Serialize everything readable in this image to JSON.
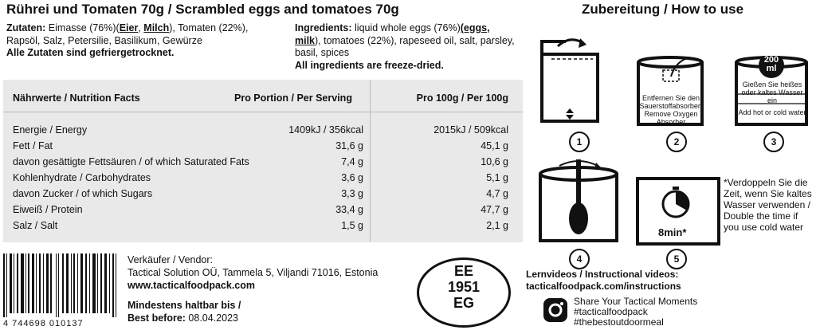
{
  "title": "Rührei und Tomaten 70g / Scrambled eggs and tomatoes 70g",
  "ingredients_de": {
    "label": "Zutaten:",
    "text1": " Eimasse (76%)(",
    "allergen1": "Eier",
    "comma": ", ",
    "allergen2": "Milch",
    "text2": "), Tomaten (22%), Rapsöl, Salz, Petersilie, Basilikum, Gewürze",
    "note": "Alle Zutaten sind gefriergetrocknet."
  },
  "ingredients_en": {
    "label": "Ingredients:",
    "text1": " liquid whole eggs (76%)",
    "allergen1": "(eggs,",
    "allergen2": "milk",
    "text2": "), tomatoes (22%), rapeseed oil, salt, parsley, basil, spices",
    "note": "All ingredients are freeze-dried."
  },
  "nutrition": {
    "header": [
      "Nährwerte / Nutrition Facts",
      "Pro Portion / Per Serving",
      "Pro 100g / Per 100g"
    ],
    "rows": [
      [
        "Energie / Energy",
        "1409kJ / 356kcal",
        "2015kJ / 509kcal"
      ],
      [
        "Fett / Fat",
        "31,6 g",
        "45,1 g"
      ],
      [
        "davon gesättigte Fettsäuren / of which Saturated Fats",
        "7,4 g",
        "10,6 g"
      ],
      [
        "Kohlenhydrate / Carbohydrates",
        "3,6 g",
        "5,1 g"
      ],
      [
        "davon Zucker / of which Sugars",
        "3,3 g",
        "4,7 g"
      ],
      [
        "Eiweiß / Protein",
        "33,4 g",
        "47,7 g"
      ],
      [
        "Salz / Salt",
        "1,5 g",
        "2,1 g"
      ]
    ]
  },
  "howto": {
    "title": "Zubereitung / How to use",
    "step2_caption": "Entfernen Sie den Sauerstoffabsorber/ Remove Oxygen Absorber",
    "step3_volume": "200",
    "step3_unit": "ml",
    "step3_de": "Gießen Sie heißes oder kaltes Wasser ein",
    "step3_en": "Add hot or cold water",
    "step5_time": "8min*",
    "numbers": [
      "1",
      "2",
      "3",
      "4",
      "5"
    ],
    "note": "*Verdoppeln Sie die Zeit, wenn Sie kaltes Wasser verwenden / Double the time if you use cold water"
  },
  "vendor": {
    "label": "Verkäufer / Vendor:",
    "address": "Tactical Solution OÜ, Tammela 5, Viljandi 71016, Estonia",
    "website": "www.tacticalfoodpack.com"
  },
  "best_before": {
    "label_de": "Mindestens haltbar bis /",
    "label_en": "Best before:",
    "date": "08.04.2023"
  },
  "stamp": {
    "line1": "EE",
    "line2": "1951",
    "line3": "EG"
  },
  "learn": {
    "label": "Lernvideos / Instructional videos:",
    "url": "tacticalfoodpack.com/instructions"
  },
  "share": {
    "line1": "Share Your Tactical Moments",
    "line2": "#tacticalfoodpack",
    "line3": "#thebestoutdoormeal"
  },
  "barcode_digits": "4 744698 010137",
  "icons": [
    "instagram-icon",
    "pouch-icon",
    "spoon-icon",
    "stopwatch-icon"
  ]
}
